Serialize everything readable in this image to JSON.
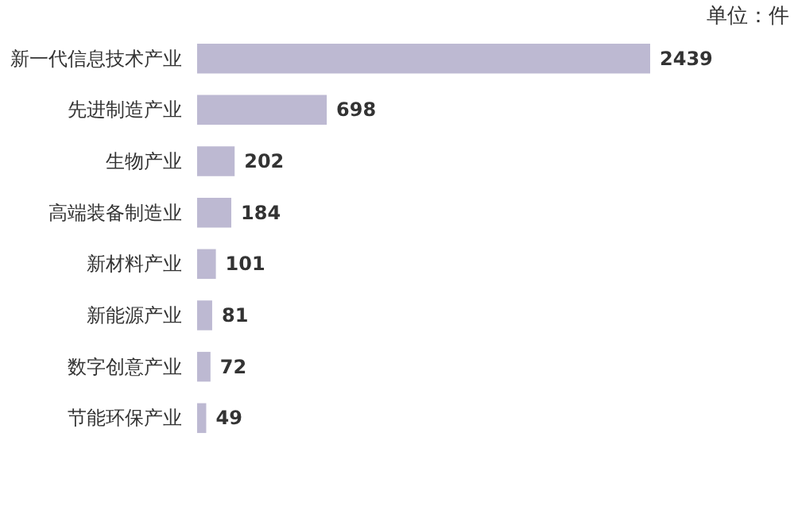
{
  "chart_data": {
    "type": "bar",
    "orientation": "horizontal",
    "annotations": [
      "单位：件"
    ],
    "categories": [
      "新一代信息技术产业",
      "先进制造产业",
      "生物产业",
      "高端装备制造业",
      "新材料产业",
      "新能源产业",
      "数字创意产业",
      "节能环保产业"
    ],
    "values": [
      2439,
      698,
      202,
      184,
      101,
      81,
      72,
      49
    ],
    "color": "#bdb9d2",
    "data_labels": true
  }
}
